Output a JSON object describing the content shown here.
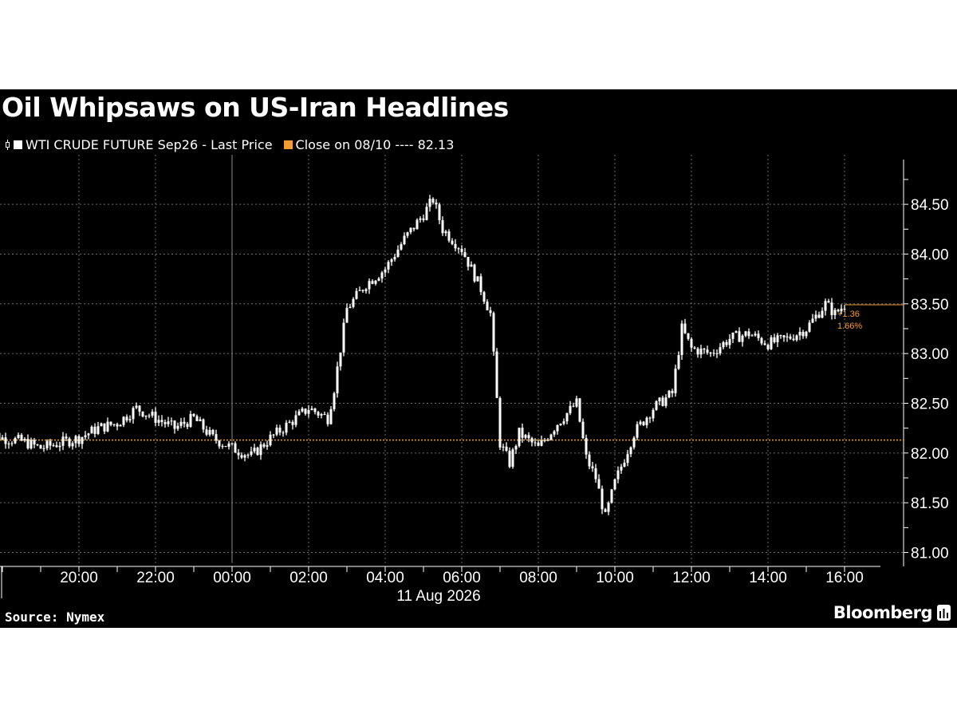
{
  "title": "Oil Whipsaws on US-Iran Headlines",
  "legend": {
    "series_label": "WTI CRUDE FUTURE Sep26 - Last Price",
    "close_label": "Close on 08/10 ---- 82.13"
  },
  "source": "Source: Nymex",
  "brand": "Bloomberg",
  "colors": {
    "background": "#000000",
    "price": "#ffffff",
    "close": "#f39c2f",
    "grid": "#6e6e6e"
  },
  "chart_data": {
    "type": "line",
    "series": [
      {
        "name": "WTI CRUDE FUTURE Sep26 - Last Price",
        "style": "candlestick-like ticks",
        "x": [
          "2026-08-10 17:30",
          "2026-08-10 18:00",
          "2026-08-10 18:30",
          "2026-08-10 19:00",
          "2026-08-10 19:30",
          "2026-08-10 20:00",
          "2026-08-10 20:30",
          "2026-08-10 21:00",
          "2026-08-10 21:30",
          "2026-08-10 22:00",
          "2026-08-10 22:30",
          "2026-08-10 23:00",
          "2026-08-10 23:30",
          "2026-08-11 00:00",
          "2026-08-11 00:30",
          "2026-08-11 01:00",
          "2026-08-11 01:30",
          "2026-08-11 02:00",
          "2026-08-11 02:30",
          "2026-08-11 02:40",
          "2026-08-11 03:00",
          "2026-08-11 03:30",
          "2026-08-11 04:00",
          "2026-08-11 04:30",
          "2026-08-11 05:00",
          "2026-08-11 05:15",
          "2026-08-11 05:30",
          "2026-08-11 06:00",
          "2026-08-11 06:30",
          "2026-08-11 06:45",
          "2026-08-11 07:00",
          "2026-08-11 07:15",
          "2026-08-11 07:30",
          "2026-08-11 08:00",
          "2026-08-11 08:30",
          "2026-08-11 09:00",
          "2026-08-11 09:15",
          "2026-08-11 09:30",
          "2026-08-11 09:45",
          "2026-08-11 10:00",
          "2026-08-11 10:30",
          "2026-08-11 11:00",
          "2026-08-11 11:30",
          "2026-08-11 11:45",
          "2026-08-11 12:00",
          "2026-08-11 12:30",
          "2026-08-11 13:00",
          "2026-08-11 13:30",
          "2026-08-11 14:00",
          "2026-08-11 14:30",
          "2026-08-11 15:00",
          "2026-08-11 15:30",
          "2026-08-11 15:45",
          "2026-08-11 16:00"
        ],
        "y": [
          82.25,
          82.15,
          82.12,
          82.05,
          82.1,
          82.15,
          82.25,
          82.3,
          82.45,
          82.35,
          82.25,
          82.35,
          82.15,
          82.05,
          81.97,
          82.15,
          82.3,
          82.45,
          82.35,
          82.65,
          83.45,
          83.7,
          83.85,
          84.15,
          84.4,
          84.55,
          84.25,
          84.05,
          83.65,
          83.4,
          82.1,
          81.9,
          82.2,
          82.05,
          82.3,
          82.5,
          81.95,
          81.75,
          81.35,
          81.7,
          82.2,
          82.45,
          82.6,
          83.25,
          83.05,
          83.0,
          83.15,
          83.2,
          83.1,
          83.15,
          83.25,
          83.5,
          83.4,
          83.49
        ]
      }
    ],
    "reference_line": {
      "label": "Close on 08/10",
      "value": 82.13
    },
    "last_value_annotation": {
      "change": "+1.36",
      "percent": "1.66%"
    },
    "xaxis": {
      "ticks": [
        "20:00",
        "22:00",
        "00:00",
        "02:00",
        "04:00",
        "06:00",
        "08:00",
        "10:00",
        "12:00",
        "14:00",
        "16:00"
      ],
      "date_label": "11 Aug 2026"
    },
    "yaxis": {
      "ticks": [
        "81.00",
        "81.50",
        "82.00",
        "82.50",
        "83.00",
        "83.50",
        "84.00",
        "84.50"
      ],
      "range": [
        80.9,
        84.95
      ],
      "side": "right"
    },
    "grid": true
  }
}
